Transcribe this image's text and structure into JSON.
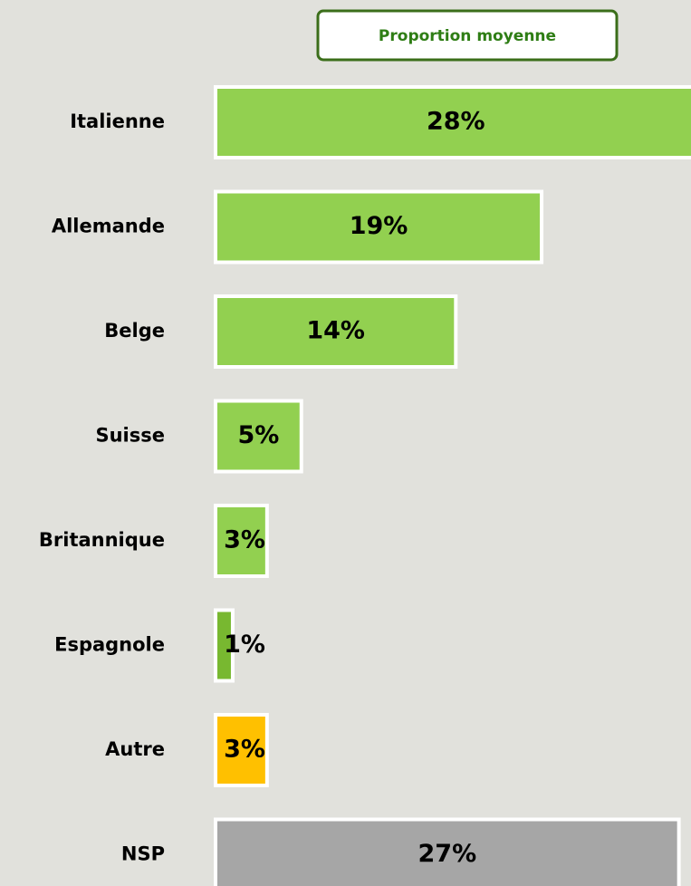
{
  "chart_data": {
    "type": "hbar",
    "categories": [
      "Italienne",
      "Allemande",
      "Belge",
      "Suisse",
      "Britannique",
      "Espagnole",
      "Autre",
      "NSP"
    ],
    "series": [
      {
        "name": "Proportion moyenne",
        "values": [
          28,
          19,
          14,
          5,
          3,
          1,
          3,
          27
        ],
        "value_labels": [
          "28%",
          "19%",
          "14%",
          "5%",
          "3%",
          "1%",
          "3%",
          "27%"
        ],
        "colors": [
          "#92d050",
          "#92d050",
          "#92d050",
          "#92d050",
          "#92d050",
          "#78b830",
          "#ffc000",
          "#a6a6a6"
        ]
      }
    ]
  }
}
